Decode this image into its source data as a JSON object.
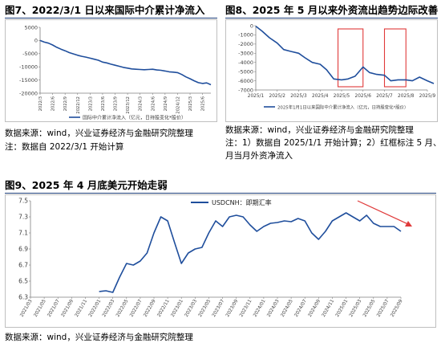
{
  "figures": [
    {
      "title": "图7、2022/3/1 日以来国际中介累计净流入",
      "notes": [
        "数据来源：wind，兴业证券经济与金融研究院整理",
        "注：数据自 2022/3/1 开始计算"
      ]
    },
    {
      "title": "图8、2025 年 5 月以来外资流出趋势边际改善",
      "notes": [
        "数据来源：wind，兴业证券经济与金融研究院整理",
        "注：1）数据自 2025/1/1 开始计算；2）红框标注 5 月、7",
        "月当月外资净流入"
      ]
    },
    {
      "title": "图9、2025 年 4 月底美元开始走弱",
      "notes": [
        "数据来源：wind，兴业证券经济与金融研究院整理"
      ]
    }
  ],
  "colors": {
    "series": "#1f4e9c",
    "axis": "#7f7f7f",
    "highlight": "#e03a3a",
    "rule": "#1f3f7a"
  },
  "chart_data": [
    {
      "type": "line",
      "title": "",
      "ylim": [
        -20000,
        5000
      ],
      "yticks": [
        "5000",
        "0",
        "-5000",
        "-10000",
        "-15000",
        "-20000"
      ],
      "x_tick_labels": [
        "2022/3",
        "2022/6",
        "2022/9",
        "2022/12",
        "2023/3",
        "2023/6",
        "2023/9",
        "2023/12",
        "2024/3",
        "2024/6",
        "2024/9",
        "2024/12",
        "2025/3",
        "2025/6"
      ],
      "series": [
        {
          "name": "国际中介累计净流入（亿元，日持股变化*股价）",
          "x": [
            "2022/3",
            "2022/4",
            "2022/5",
            "2022/6",
            "2022/7",
            "2022/8",
            "2022/9",
            "2022/10",
            "2022/11",
            "2022/12",
            "2023/1",
            "2023/2",
            "2023/3",
            "2023/4",
            "2023/5",
            "2023/6",
            "2023/7",
            "2023/8",
            "2023/9",
            "2023/10",
            "2023/11",
            "2023/12",
            "2024/1",
            "2024/2",
            "2024/3",
            "2024/4",
            "2024/5",
            "2024/6",
            "2024/7",
            "2024/8",
            "2024/9",
            "2024/10",
            "2024/11",
            "2024/12",
            "2025/1",
            "2025/2",
            "2025/3",
            "2025/4",
            "2025/5",
            "2025/6",
            "2025/7",
            "2025/8"
          ],
          "values": [
            0,
            -600,
            -1000,
            -1700,
            -2600,
            -3300,
            -3900,
            -4600,
            -5100,
            -5600,
            -6000,
            -6300,
            -6700,
            -7100,
            -7500,
            -8200,
            -8500,
            -9000,
            -9400,
            -9800,
            -10200,
            -10500,
            -10800,
            -10900,
            -11000,
            -11100,
            -11000,
            -10900,
            -11200,
            -11300,
            -11600,
            -11900,
            -12000,
            -12200,
            -12900,
            -13800,
            -14500,
            -15300,
            -16000,
            -16300,
            -16100,
            -16800
          ]
        }
      ]
    },
    {
      "type": "line",
      "title": "",
      "ylim": [
        -7000,
        0
      ],
      "yticks": [
        "0",
        "-1000",
        "-2000",
        "-3000",
        "-4000",
        "-5000",
        "-6000",
        "-7000"
      ],
      "x_tick_labels": [
        "2025/1",
        "2025/2",
        "2025/3",
        "2025/4",
        "2025/5",
        "2025/6",
        "2025/7",
        "2025/8",
        "2025/9"
      ],
      "highlight_ranges": [
        [
          "2025/4/26",
          "2025/5/31"
        ],
        [
          "2025/7/1",
          "2025/7/31"
        ]
      ],
      "series": [
        {
          "name": "2025年1月1日以来国际中介累计净流入（亿元，日持股变化*股价）",
          "x": [
            "2025/1/1",
            "2025/1/10",
            "2025/1/20",
            "2025/2/1",
            "2025/2/10",
            "2025/2/20",
            "2025/3/1",
            "2025/3/10",
            "2025/3/20",
            "2025/4/1",
            "2025/4/10",
            "2025/4/20",
            "2025/5/1",
            "2025/5/10",
            "2025/5/20",
            "2025/5/31",
            "2025/6/10",
            "2025/6/20",
            "2025/7/1",
            "2025/7/10",
            "2025/7/20",
            "2025/7/31",
            "2025/8/10",
            "2025/8/20",
            "2025/9/1",
            "2025/9/10"
          ],
          "values": [
            -50,
            -600,
            -1300,
            -1900,
            -2600,
            -2800,
            -3000,
            -3500,
            -4000,
            -4200,
            -4800,
            -5800,
            -5900,
            -5800,
            -5500,
            -4500,
            -5100,
            -5300,
            -5400,
            -6000,
            -5900,
            -5900,
            -6000,
            -5600,
            -6000,
            -6300
          ]
        }
      ]
    },
    {
      "type": "line",
      "title": "",
      "ylim": [
        6.3,
        7.5
      ],
      "yticks": [
        "7.5",
        "7.3",
        "7.1",
        "6.9",
        "6.7",
        "6.5",
        "6.3"
      ],
      "x_tick_labels": [
        "2021/03",
        "2021/05",
        "2021/07",
        "2021/09",
        "2021/11",
        "2022/01",
        "2022/03",
        "2022/05",
        "2022/07",
        "2022/09",
        "2022/11",
        "2023/01",
        "2023/03",
        "2023/05",
        "2023/07",
        "2023/09",
        "2023/11",
        "2024/01",
        "2024/03",
        "2024/05",
        "2024/07",
        "2024/09",
        "2024/11",
        "2025/01",
        "2025/03",
        "2025/05",
        "2025/07",
        "2025/09"
      ],
      "legend": "top-center",
      "series": [
        {
          "name": "USDCNH：即期汇率",
          "x": [
            "2022/01",
            "2022/02",
            "2022/03",
            "2022/04",
            "2022/05",
            "2022/06",
            "2022/07",
            "2022/08",
            "2022/09",
            "2022/10",
            "2022/11",
            "2022/12",
            "2023/01",
            "2023/02",
            "2023/03",
            "2023/04",
            "2023/05",
            "2023/06",
            "2023/07",
            "2023/08",
            "2023/09",
            "2023/10",
            "2023/11",
            "2023/12",
            "2024/01",
            "2024/02",
            "2024/03",
            "2024/04",
            "2024/05",
            "2024/06",
            "2024/07",
            "2024/08",
            "2024/09",
            "2024/10",
            "2024/11",
            "2024/12",
            "2025/01",
            "2025/02",
            "2025/03",
            "2025/04",
            "2025/05",
            "2025/06",
            "2025/07",
            "2025/08",
            "2025/09"
          ],
          "values": [
            6.37,
            6.38,
            6.36,
            6.55,
            6.72,
            6.7,
            6.75,
            6.85,
            7.1,
            7.3,
            7.25,
            6.98,
            6.72,
            6.85,
            6.9,
            6.92,
            7.1,
            7.25,
            7.18,
            7.3,
            7.32,
            7.3,
            7.2,
            7.12,
            7.18,
            7.22,
            7.23,
            7.25,
            7.24,
            7.28,
            7.25,
            7.1,
            7.02,
            7.12,
            7.25,
            7.3,
            7.35,
            7.3,
            7.25,
            7.32,
            7.22,
            7.18,
            7.18,
            7.18,
            7.12
          ]
        }
      ],
      "annotation": "arrow pointing down-right marking 2025/04 onward weakening"
    }
  ]
}
